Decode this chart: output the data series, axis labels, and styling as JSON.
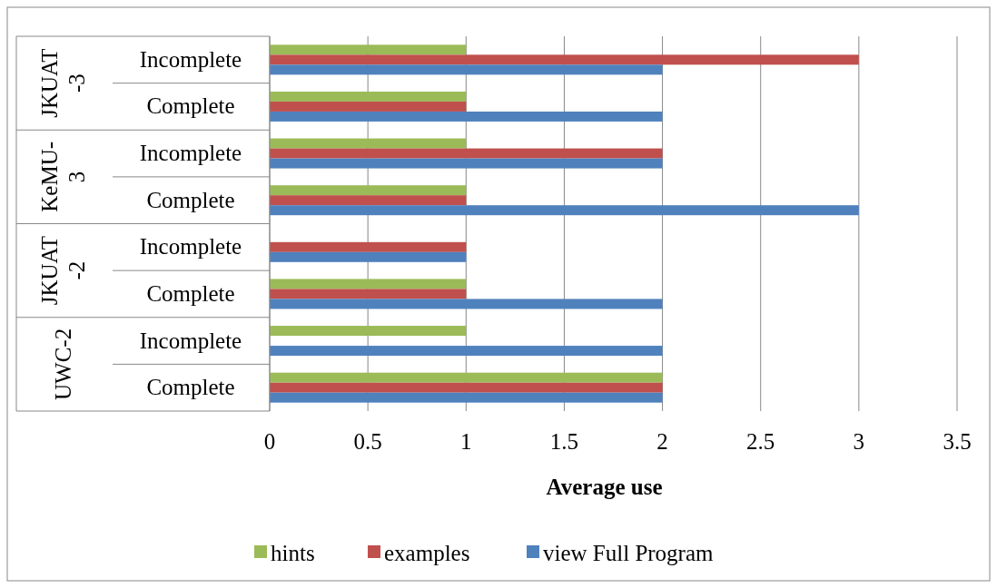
{
  "chart_data": {
    "type": "bar",
    "orientation": "horizontal",
    "xlabel": "Average use",
    "categories": [
      "Incomplete",
      "Complete",
      "Incomplete",
      "Complete",
      "Incomplete",
      "Complete",
      "Incomplete",
      "Complete"
    ],
    "annotations": [
      "JKUAT -3",
      "KeMU- 3",
      "JKUAT -2",
      "UWC-2"
    ],
    "series": [
      {
        "name": "hints",
        "color": "#9bbb59",
        "values": [
          1,
          1,
          1,
          1,
          0,
          1,
          1,
          2
        ]
      },
      {
        "name": "examples",
        "color": "#c0504d",
        "values": [
          3,
          1,
          2,
          1,
          1,
          1,
          0,
          2
        ]
      },
      {
        "name": "view Full Program",
        "color": "#4f81bd",
        "values": [
          2,
          2,
          2,
          3,
          1,
          2,
          2,
          2
        ]
      }
    ],
    "xlim": [
      0,
      3.5
    ],
    "xticks": [
      0,
      0.5,
      1,
      1.5,
      2,
      2.5,
      3,
      3.5
    ],
    "grid": "x",
    "legend": "bottom"
  }
}
